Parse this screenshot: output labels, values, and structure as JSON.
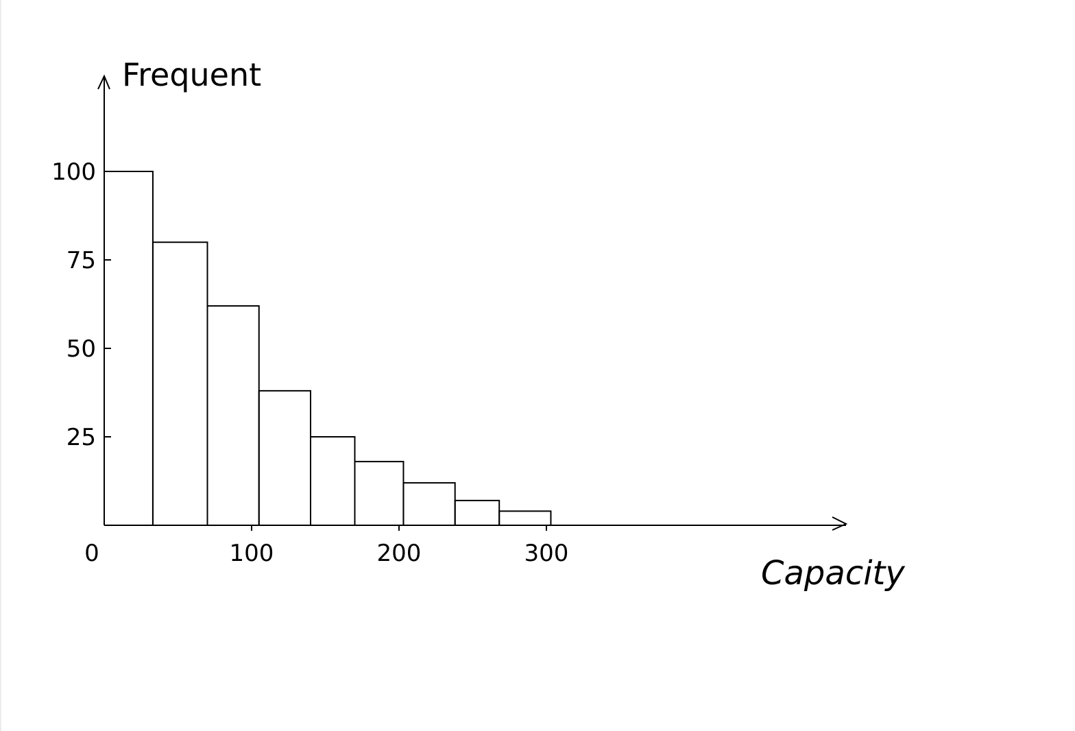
{
  "chart_data": {
    "type": "bar",
    "title": "",
    "xlabel": "Capacity",
    "ylabel": "Frequent",
    "ylim": [
      0,
      125
    ],
    "xlim": [
      0,
      500
    ],
    "grid": false,
    "legend": "none",
    "x_ticks": [
      {
        "value": 0,
        "label": "0"
      },
      {
        "value": 100,
        "label": "100"
      },
      {
        "value": 200,
        "label": "200"
      },
      {
        "value": 300,
        "label": "300"
      }
    ],
    "y_ticks": [
      {
        "value": 25,
        "label": "25"
      },
      {
        "value": 50,
        "label": "50"
      },
      {
        "value": 75,
        "label": "75"
      },
      {
        "value": 100,
        "label": "100"
      }
    ],
    "bins": [
      {
        "x0": 0,
        "x1": 33,
        "value": 100
      },
      {
        "x0": 33,
        "x1": 70,
        "value": 80
      },
      {
        "x0": 70,
        "x1": 105,
        "value": 62
      },
      {
        "x0": 105,
        "x1": 140,
        "value": 38
      },
      {
        "x0": 140,
        "x1": 170,
        "value": 25
      },
      {
        "x0": 170,
        "x1": 203,
        "value": 18
      },
      {
        "x0": 203,
        "x1": 238,
        "value": 12
      },
      {
        "x0": 238,
        "x1": 268,
        "value": 7
      },
      {
        "x0": 268,
        "x1": 303,
        "value": 4
      }
    ],
    "colors": {
      "stroke": "#000000",
      "background": "#ffffff"
    }
  }
}
